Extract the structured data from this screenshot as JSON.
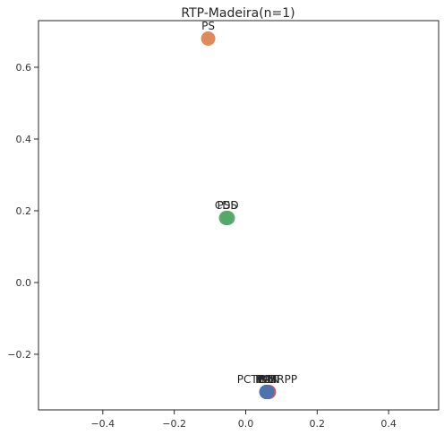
{
  "chart_data": {
    "type": "scatter",
    "title": "RTP-Madeira(n=1)",
    "xlabel": "",
    "ylabel": "",
    "xlim": [
      -0.58,
      0.54
    ],
    "ylim": [
      -0.355,
      0.73
    ],
    "xticks": [
      -0.4,
      -0.2,
      0.0,
      0.2,
      0.4
    ],
    "xtick_labels": [
      "−0.4",
      "−0.2",
      "0.0",
      "0.2",
      "0.4"
    ],
    "yticks": [
      -0.2,
      0.0,
      0.2,
      0.4,
      0.6
    ],
    "ytick_labels": [
      "−0.2",
      "0.0",
      "0.2",
      "0.4",
      "0.6"
    ],
    "grid": false,
    "points": [
      {
        "label": "PS",
        "x": -0.105,
        "y": 0.68,
        "color": "#dd8452"
      },
      {
        "label": "CDS",
        "x": -0.055,
        "y": 0.18,
        "color": "#55a868"
      },
      {
        "label": "PSD",
        "x": -0.05,
        "y": 0.18,
        "color": "#55a868"
      },
      {
        "label": "PAN",
        "x": 0.065,
        "y": -0.305,
        "color": "#c44e52"
      },
      {
        "label": "BE",
        "x": 0.058,
        "y": -0.305,
        "color": "#4c72b0"
      },
      {
        "label": "PCP",
        "x": 0.058,
        "y": -0.305,
        "color": "#4c72b0"
      },
      {
        "label": "MPT",
        "x": 0.058,
        "y": -0.305,
        "color": "#4c72b0"
      },
      {
        "label": "PCTP-MRPP",
        "x": 0.06,
        "y": -0.305,
        "color": "#4c72b0"
      }
    ]
  }
}
